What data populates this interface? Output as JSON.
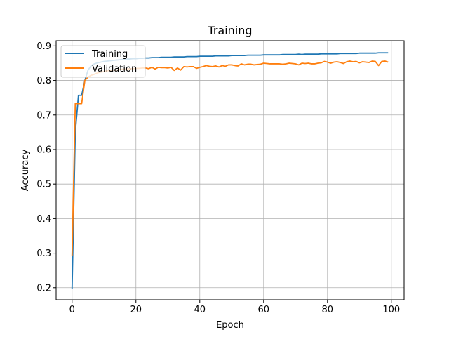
{
  "chart_data": {
    "type": "line",
    "title": "Training",
    "xlabel": "Epoch",
    "ylabel": "Accuracy",
    "xlim": [
      -5,
      104
    ],
    "ylim": [
      0.165,
      0.915
    ],
    "x_ticks": [
      0,
      20,
      40,
      60,
      80,
      100
    ],
    "y_ticks": [
      0.2,
      0.3,
      0.4,
      0.5,
      0.6,
      0.7,
      0.8,
      0.9
    ],
    "grid": true,
    "legend_position": "top-left",
    "series": [
      {
        "name": "Training",
        "color": "#1f77b4",
        "values": [
          0.197,
          0.65,
          0.757,
          0.757,
          0.8,
          0.83,
          0.843,
          0.848,
          0.851,
          0.853,
          0.855,
          0.856,
          0.857,
          0.858,
          0.859,
          0.86,
          0.861,
          0.862,
          0.862,
          0.863,
          0.863,
          0.864,
          0.864,
          0.865,
          0.865,
          0.866,
          0.866,
          0.866,
          0.867,
          0.867,
          0.867,
          0.867,
          0.868,
          0.868,
          0.868,
          0.868,
          0.869,
          0.869,
          0.869,
          0.869,
          0.87,
          0.87,
          0.87,
          0.87,
          0.87,
          0.871,
          0.871,
          0.871,
          0.871,
          0.871,
          0.872,
          0.872,
          0.872,
          0.872,
          0.872,
          0.873,
          0.873,
          0.873,
          0.873,
          0.873,
          0.874,
          0.874,
          0.874,
          0.874,
          0.874,
          0.874,
          0.875,
          0.875,
          0.875,
          0.875,
          0.875,
          0.876,
          0.875,
          0.876,
          0.876,
          0.876,
          0.876,
          0.876,
          0.877,
          0.877,
          0.877,
          0.877,
          0.877,
          0.877,
          0.878,
          0.878,
          0.878,
          0.878,
          0.878,
          0.878,
          0.879,
          0.879,
          0.879,
          0.879,
          0.879,
          0.879,
          0.88,
          0.88,
          0.88,
          0.88
        ]
      },
      {
        "name": "Validation",
        "color": "#ff7f0e",
        "values": [
          0.293,
          0.733,
          0.733,
          0.733,
          0.8,
          0.81,
          0.815,
          0.818,
          0.822,
          0.824,
          0.826,
          0.828,
          0.829,
          0.83,
          0.83,
          0.832,
          0.833,
          0.833,
          0.834,
          0.834,
          0.835,
          0.835,
          0.836,
          0.836,
          0.834,
          0.838,
          0.833,
          0.838,
          0.837,
          0.837,
          0.836,
          0.838,
          0.829,
          0.836,
          0.83,
          0.84,
          0.839,
          0.84,
          0.84,
          0.835,
          0.838,
          0.84,
          0.843,
          0.841,
          0.84,
          0.842,
          0.839,
          0.843,
          0.841,
          0.845,
          0.845,
          0.843,
          0.842,
          0.848,
          0.845,
          0.847,
          0.847,
          0.845,
          0.846,
          0.847,
          0.85,
          0.849,
          0.848,
          0.848,
          0.848,
          0.848,
          0.847,
          0.848,
          0.85,
          0.849,
          0.848,
          0.845,
          0.85,
          0.849,
          0.85,
          0.848,
          0.848,
          0.85,
          0.851,
          0.855,
          0.853,
          0.85,
          0.853,
          0.854,
          0.852,
          0.849,
          0.854,
          0.856,
          0.854,
          0.855,
          0.851,
          0.854,
          0.853,
          0.852,
          0.856,
          0.855,
          0.843,
          0.855,
          0.856,
          0.853
        ]
      }
    ]
  }
}
